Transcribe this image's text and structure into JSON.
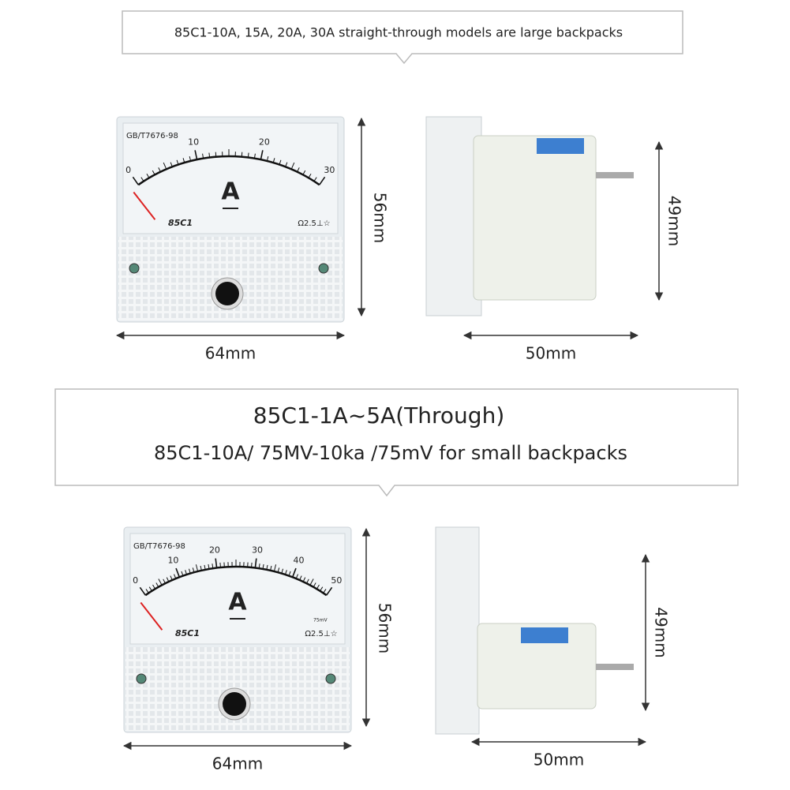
{
  "sections": [
    {
      "caption": [
        "85C1-10A, 15A, 20A, 30A straight-through models are large backpacks"
      ],
      "front": {
        "standard": "GB/T7676-98",
        "scale": [
          "0",
          "10",
          "20",
          "30"
        ],
        "unit": "A",
        "model": "85C1",
        "rating": "Ω2.5⊥☆",
        "height": "56mm",
        "width": "64mm"
      },
      "side": {
        "height": "49mm",
        "depth": "50mm"
      }
    },
    {
      "caption": [
        "85C1-1A~5A(Through)",
        "85C1-10A/ 75MV-10ka /75mV for small backpacks"
      ],
      "front": {
        "standard": "GB/T7676-98",
        "scale": [
          "0",
          "10",
          "20",
          "30",
          "40",
          "50"
        ],
        "unit": "A",
        "model": "85C1",
        "rating": "Ω2.5⊥☆",
        "shunt": "75mV",
        "height": "56mm",
        "width": "64mm"
      },
      "side": {
        "height": "49mm",
        "depth": "50mm"
      }
    }
  ]
}
